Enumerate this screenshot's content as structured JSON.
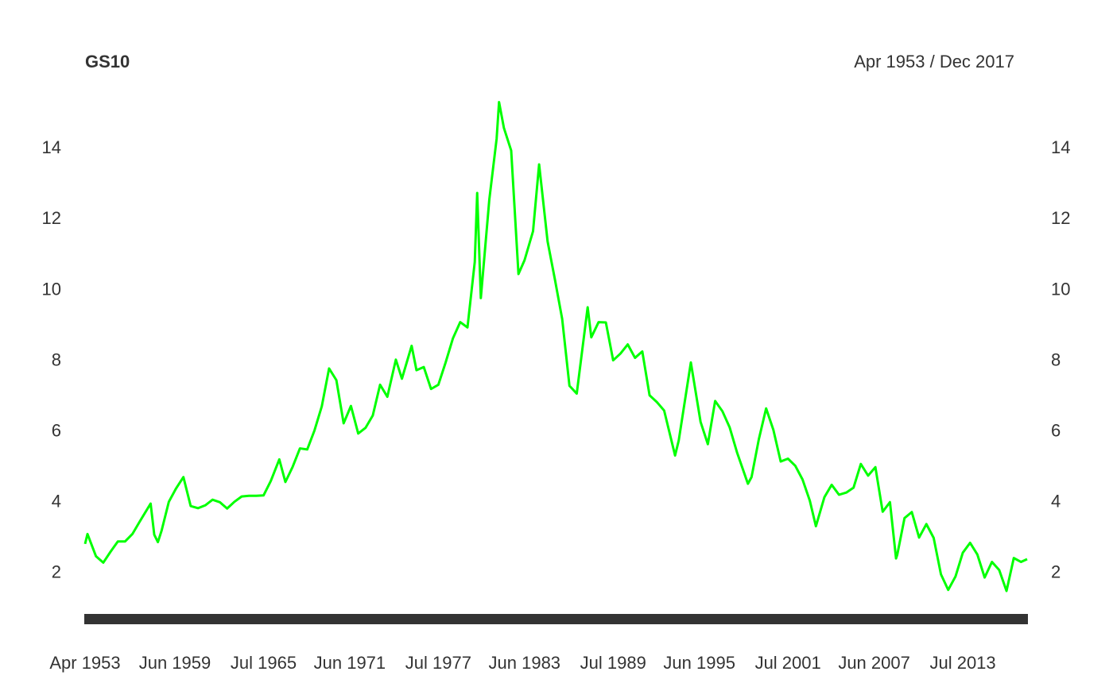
{
  "chart_data": {
    "type": "line",
    "title": "GS10",
    "subtitle": "Apr 1953 / Dec 2017",
    "x": [
      "Apr 1953",
      "Jun 1953",
      "Jan 1954",
      "Jul 1954",
      "Jan 1955",
      "Jul 1955",
      "Jan 1956",
      "Jul 1956",
      "Jan 1957",
      "Oct 1957",
      "Jan 1958",
      "Apr 1958",
      "Jul 1958",
      "Jan 1959",
      "Jul 1959",
      "Jan 1960",
      "Jul 1960",
      "Jan 1961",
      "Jul 1961",
      "Jan 1962",
      "Jul 1962",
      "Jan 1963",
      "Jul 1963",
      "Jan 1964",
      "Jul 1964",
      "Jan 1965",
      "Jul 1965",
      "Jan 1966",
      "Aug 1966",
      "Jan 1967",
      "Jul 1967",
      "Jan 1968",
      "Jul 1968",
      "Jan 1969",
      "Jul 1969",
      "Jan 1970",
      "Jul 1970",
      "Jan 1971",
      "Jul 1971",
      "Jan 1972",
      "Jul 1972",
      "Jan 1973",
      "Jul 1973",
      "Jan 1974",
      "Aug 1974",
      "Jan 1975",
      "Sep 1975",
      "Jan 1976",
      "Jul 1976",
      "Jan 1977",
      "Jul 1977",
      "Jan 1978",
      "Jul 1978",
      "Jan 1979",
      "Jul 1979",
      "Jan 1980",
      "Mar 1980",
      "Jun 1980",
      "Jan 1981",
      "Jul 1981",
      "Sep 1981",
      "Jan 1982",
      "Jul 1982",
      "Jan 1983",
      "Jun 1983",
      "Jan 1984",
      "Jun 1984",
      "Jan 1985",
      "Jul 1985",
      "Jan 1986",
      "Jul 1986",
      "Jan 1987",
      "Oct 1987",
      "Jan 1988",
      "Jul 1988",
      "Jan 1989",
      "Jul 1989",
      "Jan 1990",
      "Jul 1990",
      "Jan 1991",
      "Jul 1991",
      "Jan 1992",
      "Jul 1992",
      "Jan 1993",
      "Oct 1993",
      "Jan 1994",
      "Nov 1994",
      "Jul 1995",
      "Jan 1996",
      "Jul 1996",
      "Jan 1997",
      "Jul 1997",
      "Jan 1998",
      "Oct 1998",
      "Jan 1999",
      "Jul 1999",
      "Jan 2000",
      "Jul 2000",
      "Jan 2001",
      "Jul 2001",
      "Jan 2002",
      "Jul 2002",
      "Jan 2003",
      "Jun 2003",
      "Jan 2004",
      "Jul 2004",
      "Jan 2005",
      "Jul 2005",
      "Jan 2006",
      "Jul 2006",
      "Jan 2007",
      "Jul 2007",
      "Jan 2008",
      "Jul 2008",
      "Dec 2008",
      "Jan 2009",
      "Jul 2009",
      "Jan 2010",
      "Jul 2010",
      "Jan 2011",
      "Jul 2011",
      "Jan 2012",
      "Jul 2012",
      "Jan 2013",
      "Jul 2013",
      "Jan 2014",
      "Jul 2014",
      "Jan 2015",
      "Jul 2015",
      "Jan 2016",
      "Jul 2016",
      "Jan 2017",
      "Jul 2017",
      "Dec 2017"
    ],
    "series": [
      {
        "name": "GS10",
        "color": "#00ff00",
        "values": [
          2.83,
          3.11,
          2.48,
          2.3,
          2.61,
          2.9,
          2.9,
          3.11,
          3.46,
          3.97,
          3.09,
          2.88,
          3.2,
          4.02,
          4.4,
          4.72,
          3.9,
          3.84,
          3.92,
          4.08,
          4.01,
          3.83,
          4.02,
          4.17,
          4.19,
          4.19,
          4.2,
          4.61,
          5.22,
          4.58,
          5.01,
          5.53,
          5.5,
          6.04,
          6.72,
          7.79,
          7.46,
          6.24,
          6.73,
          5.95,
          6.11,
          6.46,
          7.33,
          6.99,
          8.04,
          7.5,
          8.43,
          7.74,
          7.83,
          7.21,
          7.33,
          7.96,
          8.64,
          9.1,
          8.95,
          10.8,
          12.75,
          9.78,
          12.57,
          14.28,
          15.32,
          14.59,
          13.95,
          10.46,
          10.85,
          11.67,
          13.56,
          11.38,
          10.31,
          9.19,
          7.3,
          7.08,
          9.52,
          8.67,
          9.1,
          9.09,
          8.02,
          8.21,
          8.47,
          8.09,
          8.27,
          7.03,
          6.84,
          6.6,
          5.33,
          5.75,
          7.96,
          6.28,
          5.65,
          6.87,
          6.58,
          6.12,
          5.42,
          4.53,
          4.72,
          5.79,
          6.66,
          6.05,
          5.16,
          5.24,
          5.04,
          4.65,
          4.05,
          3.33,
          4.15,
          4.5,
          4.22,
          4.28,
          4.42,
          5.09,
          4.76,
          5.0,
          3.74,
          4.01,
          2.42,
          2.52,
          3.56,
          3.73,
          3.01,
          3.39,
          3.0,
          1.97,
          1.53,
          1.91,
          2.58,
          2.86,
          2.53,
          1.88,
          2.32,
          2.09,
          1.5,
          2.43,
          2.32,
          2.4
        ]
      }
    ],
    "xticks": [
      "Apr 1953",
      "Jun 1959",
      "Jul 1965",
      "Jun 1971",
      "Jul 1977",
      "Jun 1983",
      "Jul 1989",
      "Jun 1995",
      "Jul 2001",
      "Jun 2007",
      "Jul 2013"
    ],
    "ylim": [
      0.85,
      15.4
    ],
    "yticks": [
      2,
      4,
      6,
      8,
      10,
      12,
      14
    ]
  }
}
